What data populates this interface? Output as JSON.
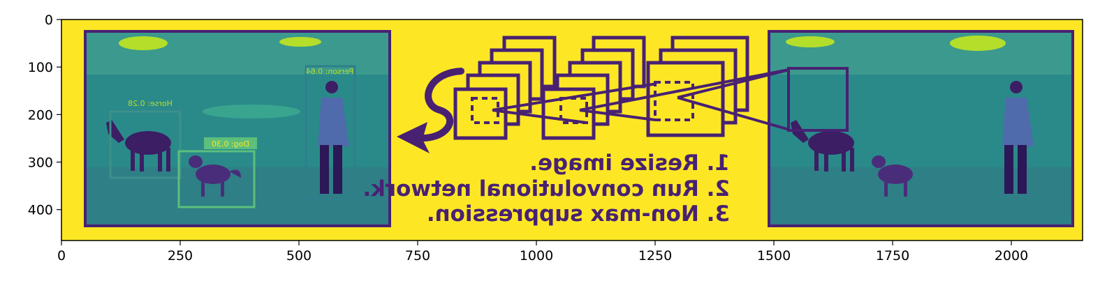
{
  "image": {
    "description_free": true,
    "extent": {
      "x": [
        0,
        2150
      ],
      "y": [
        465,
        0
      ]
    },
    "colormap": "viridis",
    "colors": {
      "background": "#fde725",
      "frame": "#482173",
      "grass": "#2a8a8a",
      "grass_light": "#3aa58f",
      "hill": "#3b9a8d",
      "highlight": "#b5de2b",
      "dark": "#3b1e63"
    }
  },
  "axes": {
    "x_ticks": [
      0,
      250,
      500,
      750,
      1000,
      1250,
      1500,
      1750,
      2000
    ],
    "y_ticks": [
      0,
      100,
      200,
      300,
      400
    ],
    "x_range": [
      0,
      2150
    ],
    "y_range": [
      465,
      0
    ]
  },
  "detections": [
    {
      "label": "Person: 0.64"
    },
    {
      "label": "Horse: 0.28"
    },
    {
      "label": "Dog: 0.30"
    }
  ],
  "steps": [
    "1. Resize image.",
    "2. Run convolutional network.",
    "3. Non-max suppression."
  ]
}
